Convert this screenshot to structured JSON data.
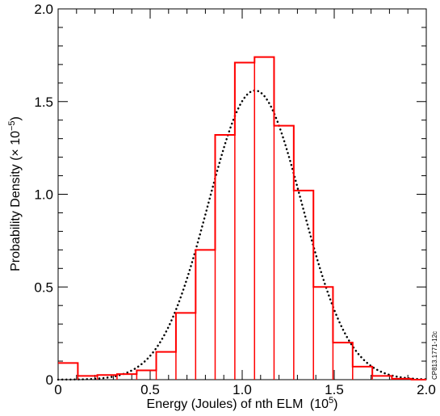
{
  "chart_data": {
    "type": "bar",
    "title": "",
    "xlabel": "Energy (Joules) of nth ELM",
    "xlabel_unit_base": "(10",
    "xlabel_unit_exp": "5",
    "xlabel_unit_close": ")",
    "ylabel": "Probability Density (× 10",
    "ylabel_exp": "−5",
    "ylabel_close": ")",
    "xlim": [
      0,
      2.0
    ],
    "ylim": [
      0,
      2.0
    ],
    "x_ticks": [
      "0",
      "0.5",
      "1.0",
      "1.5",
      "2.0"
    ],
    "x_tick_values": [
      0,
      0.5,
      1.0,
      1.5,
      2.0
    ],
    "y_ticks": [
      "0",
      "0.5",
      "1.0",
      "1.5",
      "2.0"
    ],
    "y_tick_values": [
      0,
      0.5,
      1.0,
      1.5,
      2.0
    ],
    "grid": false,
    "series": [
      {
        "type": "histogram",
        "color": "#ff0000",
        "bins": [
          {
            "x0": 0.0,
            "x1": 0.107,
            "value": 0.09
          },
          {
            "x0": 0.107,
            "x1": 0.213,
            "value": 0.02
          },
          {
            "x0": 0.213,
            "x1": 0.32,
            "value": 0.025
          },
          {
            "x0": 0.32,
            "x1": 0.427,
            "value": 0.03
          },
          {
            "x0": 0.427,
            "x1": 0.533,
            "value": 0.05
          },
          {
            "x0": 0.533,
            "x1": 0.64,
            "value": 0.15
          },
          {
            "x0": 0.64,
            "x1": 0.747,
            "value": 0.36
          },
          {
            "x0": 0.747,
            "x1": 0.853,
            "value": 0.7
          },
          {
            "x0": 0.853,
            "x1": 0.96,
            "value": 1.32
          },
          {
            "x0": 0.96,
            "x1": 1.067,
            "value": 1.71
          },
          {
            "x0": 1.067,
            "x1": 1.173,
            "value": 1.74
          },
          {
            "x0": 1.173,
            "x1": 1.28,
            "value": 1.37
          },
          {
            "x0": 1.28,
            "x1": 1.387,
            "value": 1.02
          },
          {
            "x0": 1.387,
            "x1": 1.493,
            "value": 0.5
          },
          {
            "x0": 1.493,
            "x1": 1.6,
            "value": 0.2
          },
          {
            "x0": 1.6,
            "x1": 1.707,
            "value": 0.07
          },
          {
            "x0": 1.707,
            "x1": 1.813,
            "value": 0.02
          },
          {
            "x0": 1.813,
            "x1": 1.92,
            "value": 0.005
          },
          {
            "x0": 1.92,
            "x1": 2.0,
            "value": 0.0
          }
        ]
      },
      {
        "type": "gaussian-fit",
        "color": "#000000",
        "style": "dotted",
        "mean": 1.07,
        "sigma": 0.255,
        "peak": 1.56
      }
    ]
  },
  "side_note": "CP813.1771-12c",
  "colors": {
    "histogram": "#ff0000",
    "fit": "#000000",
    "axes": "#000000",
    "background": "#ffffff"
  }
}
